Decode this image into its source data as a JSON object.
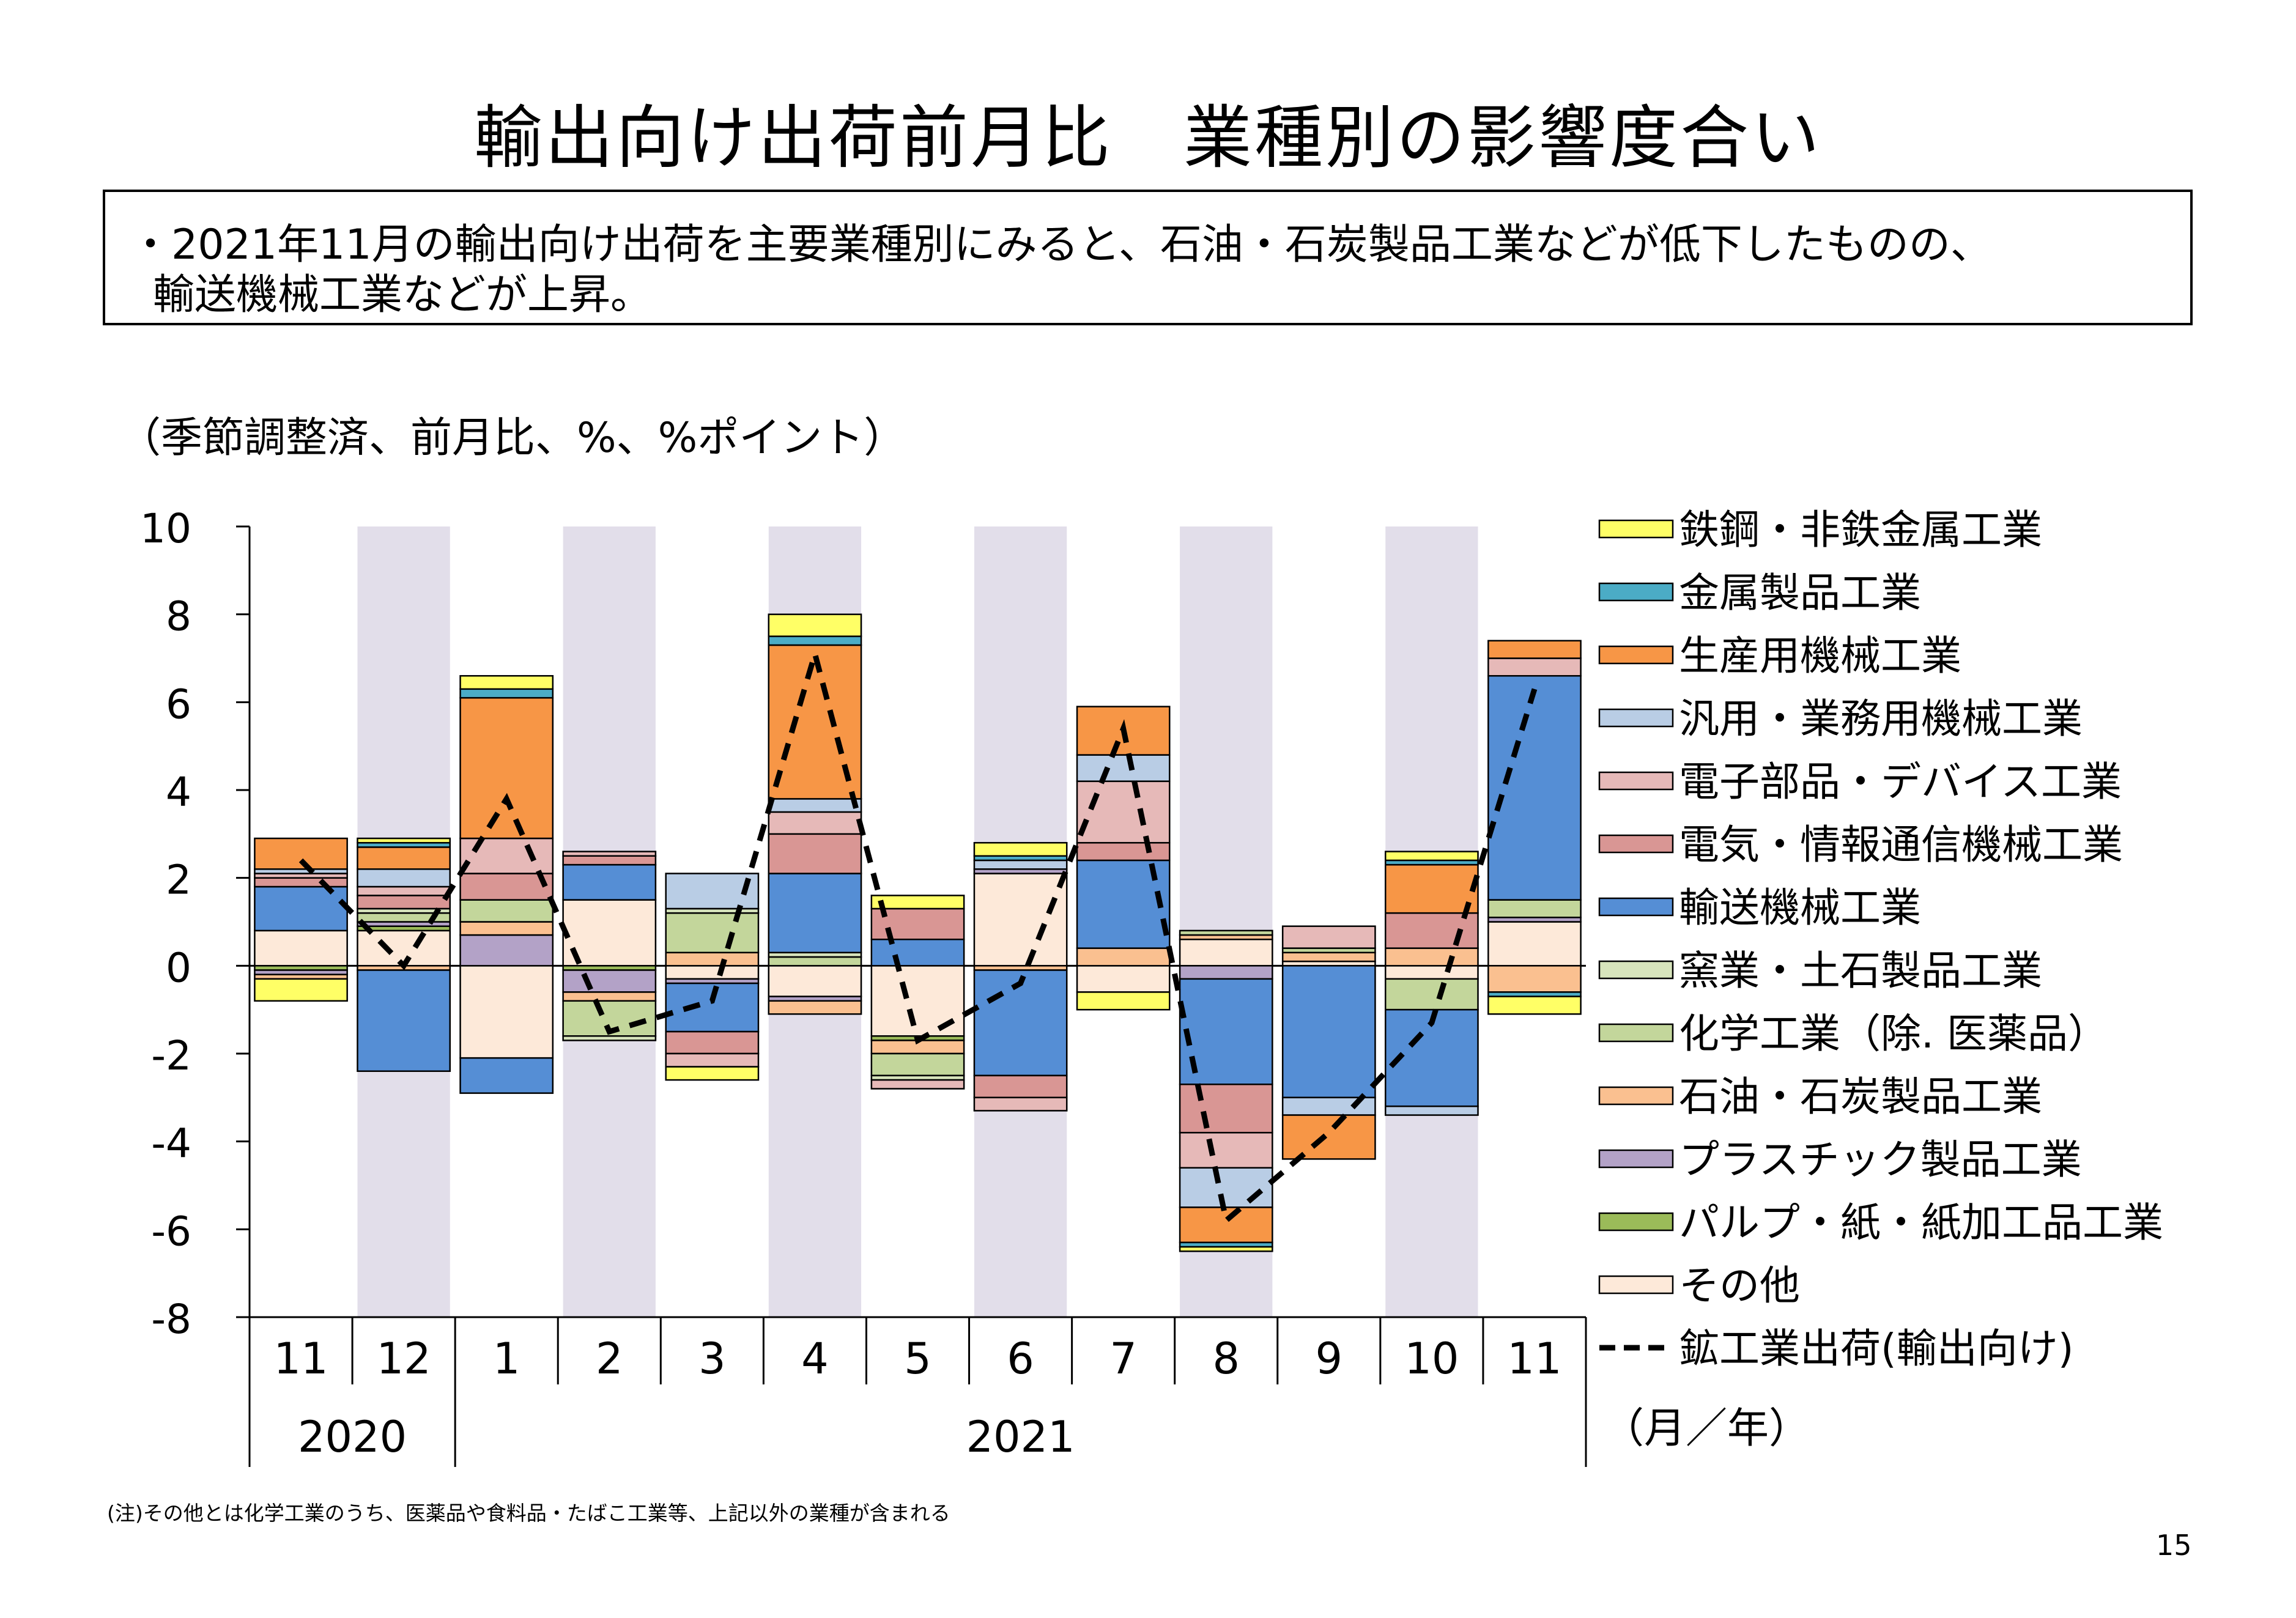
{
  "title": "輸出向け出荷前月比　業種別の影響度合い",
  "summary": {
    "line1": "・2021年11月の輸出向け出荷を主要業種別にみると、石油・石炭製品工業などが低下したものの、",
    "line2": "輸送機械工業などが上昇。"
  },
  "unit_note": "（季節調整済、前月比、%、%ポイント）",
  "footnote": "(注)その他とは化学工業のうち、医薬品や食料品・たばこ工業等、上記以外の業種が含まれる",
  "page_number": "15",
  "chart_data": {
    "type": "bar",
    "stacked": true,
    "ylim": [
      -8,
      10
    ],
    "yticks": [
      "10",
      "8",
      "6",
      "4",
      "2",
      "0",
      "-2",
      "-4",
      "-6",
      "-8"
    ],
    "categories": [
      "11",
      "12",
      "1",
      "2",
      "3",
      "4",
      "5",
      "6",
      "7",
      "8",
      "9",
      "10",
      "11"
    ],
    "year_labels": [
      {
        "label": "2020",
        "months": [
          "11",
          "12"
        ]
      },
      {
        "label": "2021",
        "months": [
          "1",
          "2",
          "3",
          "4",
          "5",
          "6",
          "7",
          "8",
          "9",
          "10",
          "11"
        ]
      }
    ],
    "x_unit": "（月／年）",
    "shaded_columns": [
      1,
      3,
      5,
      7,
      9,
      11
    ],
    "shade_color": "#e2deea",
    "series": [
      {
        "name": "その他",
        "color": "#fde9d9",
        "values": [
          0.8,
          0.8,
          -2.1,
          1.5,
          -0.3,
          -0.7,
          -1.6,
          2.1,
          -0.6,
          0.6,
          0.1,
          -0.3,
          1.0
        ]
      },
      {
        "name": "パルプ・紙・紙加工品工業",
        "color": "#9bbb59",
        "values": [
          -0.1,
          0.1,
          0.0,
          -0.1,
          0.0,
          0.0,
          -0.1,
          0.0,
          0.0,
          0.0,
          0.0,
          0.0,
          0.0
        ]
      },
      {
        "name": "プラスチック製品工業",
        "color": "#b3a2c7",
        "values": [
          -0.1,
          0.1,
          0.7,
          -0.5,
          -0.1,
          -0.1,
          0.0,
          0.1,
          0.0,
          -0.3,
          0.0,
          0.0,
          0.1
        ]
      },
      {
        "name": "石油・石炭製品工業",
        "color": "#fac090",
        "values": [
          -0.1,
          -0.1,
          0.3,
          -0.2,
          0.3,
          -0.3,
          -0.3,
          -0.1,
          0.4,
          0.1,
          0.2,
          0.4,
          -0.6
        ]
      },
      {
        "name": "化学工業（除. 医薬品）",
        "color": "#c3d69b",
        "values": [
          0.0,
          0.2,
          0.5,
          -0.8,
          0.9,
          0.2,
          -0.5,
          0.0,
          0.0,
          0.1,
          0.1,
          -0.7,
          0.4
        ]
      },
      {
        "name": "窯業・土石製品工業",
        "color": "#d7e4bc",
        "values": [
          0.0,
          0.1,
          0.0,
          -0.1,
          0.1,
          0.1,
          -0.1,
          0.0,
          0.0,
          0.0,
          0.0,
          0.0,
          0.0
        ]
      },
      {
        "name": "輸送機械工業",
        "color": "#558ed5",
        "values": [
          1.0,
          -2.3,
          -0.8,
          0.8,
          -1.1,
          1.8,
          0.6,
          -2.4,
          2.0,
          -2.4,
          -3.0,
          -2.2,
          5.1
        ]
      },
      {
        "name": "電気・情報通信機械工業",
        "color": "#d99694",
        "values": [
          0.2,
          0.3,
          0.6,
          0.2,
          -0.5,
          0.9,
          0.7,
          -0.5,
          0.4,
          -1.1,
          0.0,
          0.8,
          0.0
        ]
      },
      {
        "name": "電子部品・デバイス工業",
        "color": "#e6b9b8",
        "values": [
          0.1,
          0.2,
          0.8,
          0.1,
          -0.3,
          0.5,
          -0.2,
          -0.3,
          1.4,
          -0.8,
          0.5,
          0.0,
          0.4
        ]
      },
      {
        "name": "汎用・業務用機械工業",
        "color": "#b9cde5",
        "values": [
          0.1,
          0.4,
          0.0,
          0.0,
          0.8,
          0.3,
          0.0,
          0.2,
          0.6,
          -0.9,
          -0.4,
          -0.2,
          0.0
        ]
      },
      {
        "name": "生産用機械工業",
        "color": "#f79646",
        "values": [
          0.7,
          0.5,
          3.2,
          0.0,
          0.0,
          3.5,
          0.0,
          0.0,
          1.1,
          -0.8,
          -1.0,
          1.1,
          0.4
        ]
      },
      {
        "name": "金属製品工業",
        "color": "#4bacc6",
        "values": [
          0.0,
          0.1,
          0.2,
          0.0,
          0.0,
          0.2,
          0.0,
          0.1,
          0.0,
          -0.1,
          0.0,
          0.1,
          -0.1
        ]
      },
      {
        "name": "鉄鋼・非鉄金属工業",
        "color": "#ffff66",
        "values": [
          -0.5,
          0.1,
          0.3,
          0.0,
          -0.3,
          0.5,
          0.3,
          0.3,
          -0.4,
          -0.1,
          0.0,
          0.2,
          -0.4
        ]
      }
    ],
    "line": {
      "name": "鉱工業出荷(輸出向け)",
      "values": [
        2.4,
        0.0,
        3.8,
        -1.5,
        -0.8,
        7.1,
        -1.7,
        -0.4,
        5.4,
        -5.8,
        -3.8,
        -1.3,
        6.3
      ]
    },
    "legend_order": [
      "鉄鋼・非鉄金属工業",
      "金属製品工業",
      "生産用機械工業",
      "汎用・業務用機械工業",
      "電子部品・デバイス工業",
      "電気・情報通信機械工業",
      "輸送機械工業",
      "窯業・土石製品工業",
      "化学工業（除. 医薬品）",
      "石油・石炭製品工業",
      "プラスチック製品工業",
      "パルプ・紙・紙加工品工業",
      "その他",
      "鉱工業出荷(輸出向け)"
    ]
  }
}
